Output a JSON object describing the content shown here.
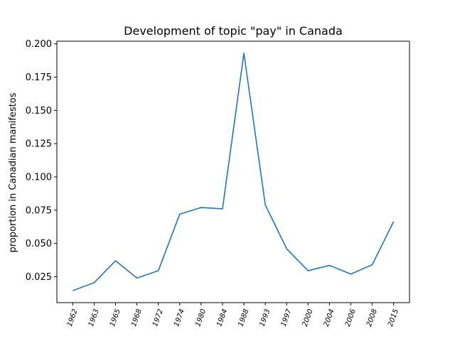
{
  "chart_data": {
    "type": "line",
    "title": "Development of topic \"pay\" in Canada",
    "xlabel": "",
    "ylabel": "proportion in Canadian manifestos",
    "categories": [
      "1962",
      "1963",
      "1965",
      "1968",
      "1972",
      "1974",
      "1980",
      "1984",
      "1988",
      "1993",
      "1997",
      "2000",
      "2004",
      "2006",
      "2008",
      "2015"
    ],
    "series": [
      {
        "values": [
          0.0145,
          0.0205,
          0.037,
          0.024,
          0.0295,
          0.072,
          0.077,
          0.076,
          0.193,
          0.079,
          0.046,
          0.0295,
          0.0335,
          0.027,
          0.034,
          0.0665
        ],
        "color": "#1f77b4"
      }
    ],
    "ylim": [
      0.0055,
      0.202
    ],
    "yticks": [
      "0.025",
      "0.050",
      "0.075",
      "0.100",
      "0.125",
      "0.150",
      "0.175",
      "0.200"
    ],
    "grid": false,
    "legend": "none"
  }
}
